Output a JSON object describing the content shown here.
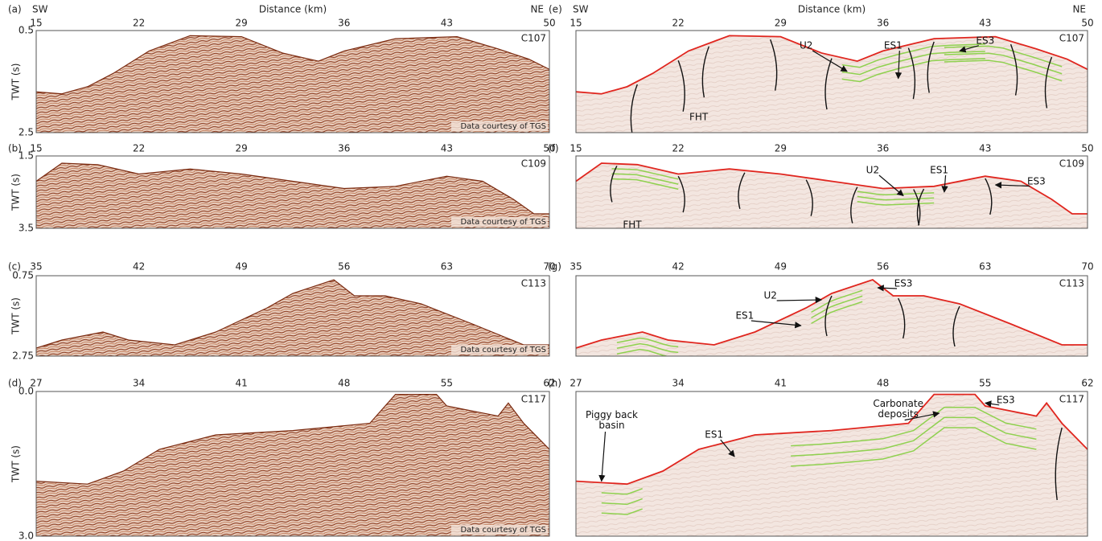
{
  "header": {
    "left": {
      "sw": "SW",
      "title": "Distance (km)",
      "ne": "NE"
    },
    "right": {
      "sw": "SW",
      "title": "Distance (km)",
      "ne": "NE"
    }
  },
  "panels": [
    {
      "label": "(a)",
      "line": "C107",
      "xticks": [
        "15",
        "22",
        "29",
        "36",
        "43",
        "50"
      ],
      "yticks": [
        "0.5",
        "2.5"
      ],
      "ylabel": "TWT (s)",
      "credit": "Data courtesy of TGS"
    },
    {
      "label": "(b)",
      "line": "C109",
      "xticks": [
        "15",
        "22",
        "29",
        "36",
        "43",
        "50"
      ],
      "yticks": [
        "1.5",
        "3.5"
      ],
      "ylabel": "TWT (s)",
      "credit": "Data courtesy of TGS"
    },
    {
      "label": "(c)",
      "line": "C113",
      "xticks": [
        "35",
        "42",
        "49",
        "56",
        "63",
        "70"
      ],
      "yticks": [
        "0.75",
        "2.75"
      ],
      "ylabel": "TWT (s)",
      "credit": "Data courtesy of TGS"
    },
    {
      "label": "(d)",
      "line": "C117",
      "xticks": [
        "27",
        "34",
        "41",
        "48",
        "55",
        "62"
      ],
      "yticks": [
        "0.0",
        "3.0"
      ],
      "ylabel": "TWT (s)",
      "credit": "Data courtesy of TGS"
    }
  ],
  "interpretations": [
    {
      "label": "(e)",
      "line": "C107",
      "xticks": [
        "15",
        "22",
        "29",
        "36",
        "43",
        "50"
      ],
      "annotations": [
        "U2",
        "ES1",
        "ES3",
        "FHT"
      ]
    },
    {
      "label": "(f)",
      "line": "C109",
      "xticks": [
        "15",
        "22",
        "29",
        "36",
        "43",
        "50"
      ],
      "annotations": [
        "U2",
        "ES1",
        "ES3",
        "FHT"
      ]
    },
    {
      "label": "(g)",
      "line": "C113",
      "xticks": [
        "35",
        "42",
        "49",
        "56",
        "63",
        "70"
      ],
      "annotations": [
        "U2",
        "ES1",
        "ES3"
      ]
    },
    {
      "label": "(h)",
      "line": "C117",
      "xticks": [
        "27",
        "34",
        "41",
        "48",
        "55",
        "62"
      ],
      "annotations": [
        "Piggy back basin",
        "ES1",
        "Carbonate deposits",
        "ES3"
      ]
    }
  ]
}
